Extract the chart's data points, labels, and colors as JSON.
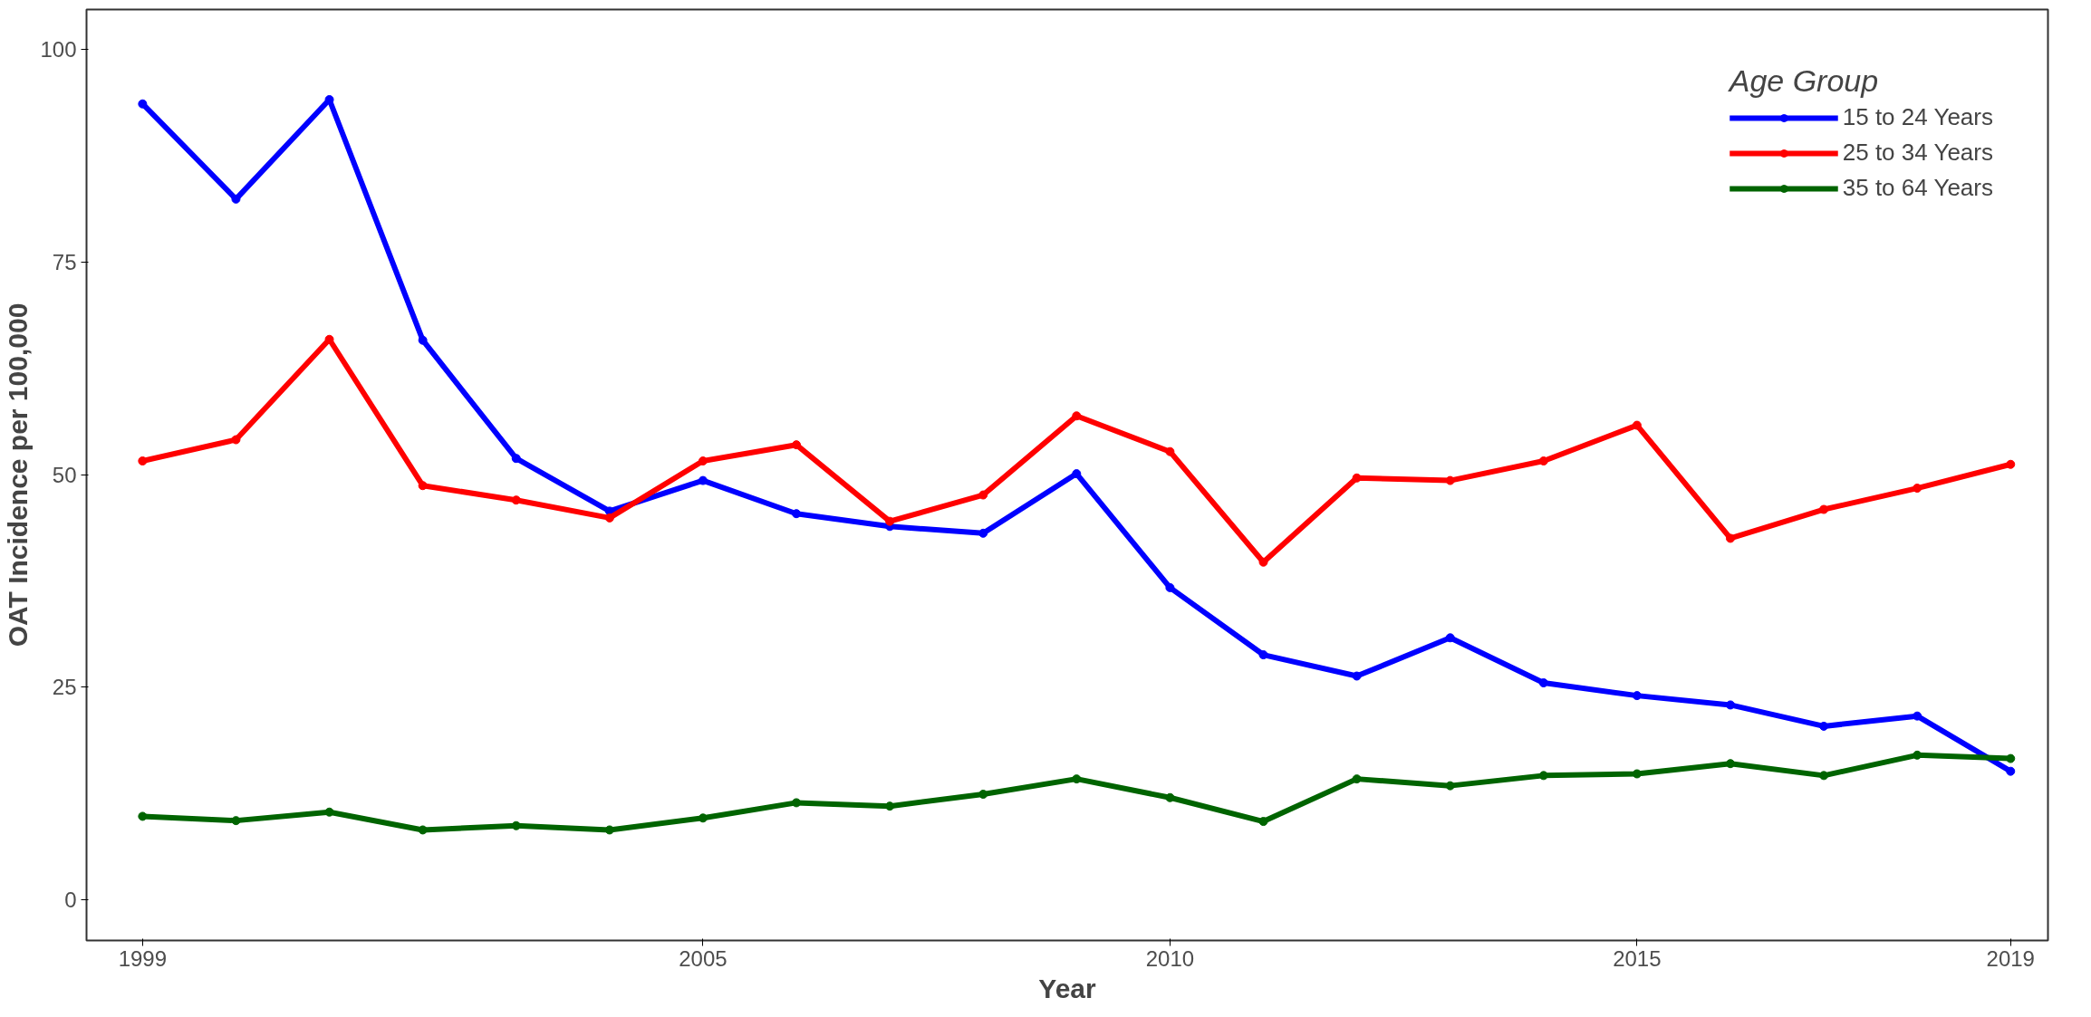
{
  "chart_data": {
    "type": "line",
    "xlabel": "Year",
    "ylabel": "OAT Incidence per 100,000",
    "legend_title": "Age Group",
    "legend": "top right",
    "grid": false,
    "marker": "circle",
    "line_style": "solid",
    "x": [
      1999,
      2000,
      2001,
      2002,
      2003,
      2004,
      2005,
      2006,
      2007,
      2008,
      2009,
      2010,
      2011,
      2012,
      2013,
      2014,
      2015,
      2016,
      2017,
      2018,
      2019
    ],
    "xlim": [
      1998.4,
      2019.4
    ],
    "xticks": [
      1999,
      2005,
      2010,
      2015,
      2019
    ],
    "ylim": [
      -4.8,
      104.7
    ],
    "yticks": [
      0,
      25,
      50,
      75,
      100
    ],
    "series": [
      {
        "name": "15 to 24 Years",
        "color": "#0000ff",
        "values": [
          93.6,
          82.4,
          94.1,
          65.8,
          51.9,
          45.7,
          49.3,
          45.4,
          43.9,
          43.1,
          50.1,
          36.7,
          28.8,
          26.3,
          30.8,
          25.5,
          24.0,
          22.9,
          20.4,
          21.6,
          15.1
        ]
      },
      {
        "name": "25 to 34 Years",
        "color": "#ff0000",
        "values": [
          51.6,
          54.1,
          65.9,
          48.7,
          47.0,
          44.9,
          51.6,
          53.5,
          44.5,
          47.6,
          56.9,
          52.7,
          39.7,
          49.6,
          49.3,
          51.6,
          55.8,
          42.5,
          45.9,
          48.4,
          51.2
        ]
      },
      {
        "name": "35 to 64 Years",
        "color": "#006400",
        "values": [
          9.8,
          9.3,
          10.3,
          8.2,
          8.7,
          8.2,
          9.6,
          11.4,
          11.0,
          12.4,
          14.2,
          12.0,
          9.2,
          14.2,
          13.4,
          14.6,
          14.8,
          16.0,
          14.6,
          17.0,
          16.6
        ]
      }
    ]
  }
}
